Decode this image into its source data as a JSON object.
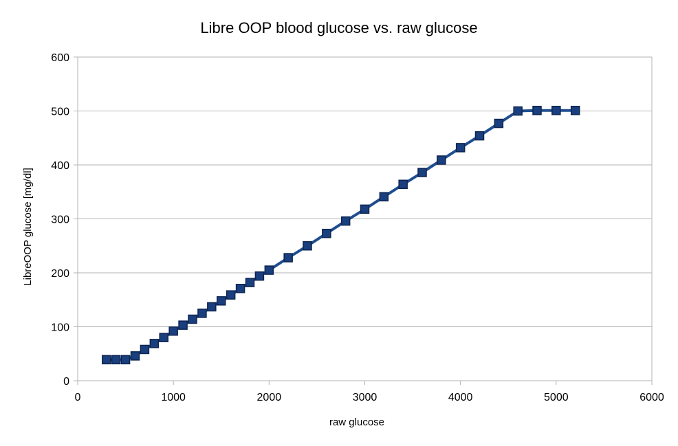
{
  "chart_data": {
    "type": "line",
    "title": "Libre OOP blood glucose vs. raw glucose",
    "xlabel": "raw glucose",
    "ylabel": "LibreOOP glucose [mg/dl]",
    "xlim": [
      0,
      6000
    ],
    "ylim": [
      0,
      600
    ],
    "xticks": [
      0,
      1000,
      2000,
      3000,
      4000,
      5000,
      6000
    ],
    "yticks": [
      0,
      100,
      200,
      300,
      400,
      500,
      600
    ],
    "grid": "horizontal",
    "legend": "none",
    "series": [
      {
        "x": [
          300,
          400,
          500,
          600,
          700,
          800,
          900,
          1000,
          1100,
          1200,
          1300,
          1400,
          1500,
          1600,
          1700,
          1800,
          1900,
          2000,
          2200,
          2400,
          2600,
          2800,
          3000,
          3200,
          3400,
          3600,
          3800,
          4000,
          4200,
          4400,
          4600,
          4800,
          5000,
          5200
        ],
        "y": [
          39,
          39,
          39,
          46,
          58,
          69,
          80,
          92,
          103,
          114,
          125,
          137,
          148,
          159,
          171,
          182,
          194,
          205,
          228,
          250,
          273,
          296,
          318,
          341,
          364,
          386,
          409,
          432,
          454,
          477,
          500,
          501,
          501,
          501
        ]
      }
    ],
    "colors": {
      "line": "#1f4e8f",
      "marker_fill": "#1a3f7e",
      "marker_stroke": "#0d2450",
      "grid": "#b3b3b3",
      "axis": "#b3b3b3"
    }
  }
}
